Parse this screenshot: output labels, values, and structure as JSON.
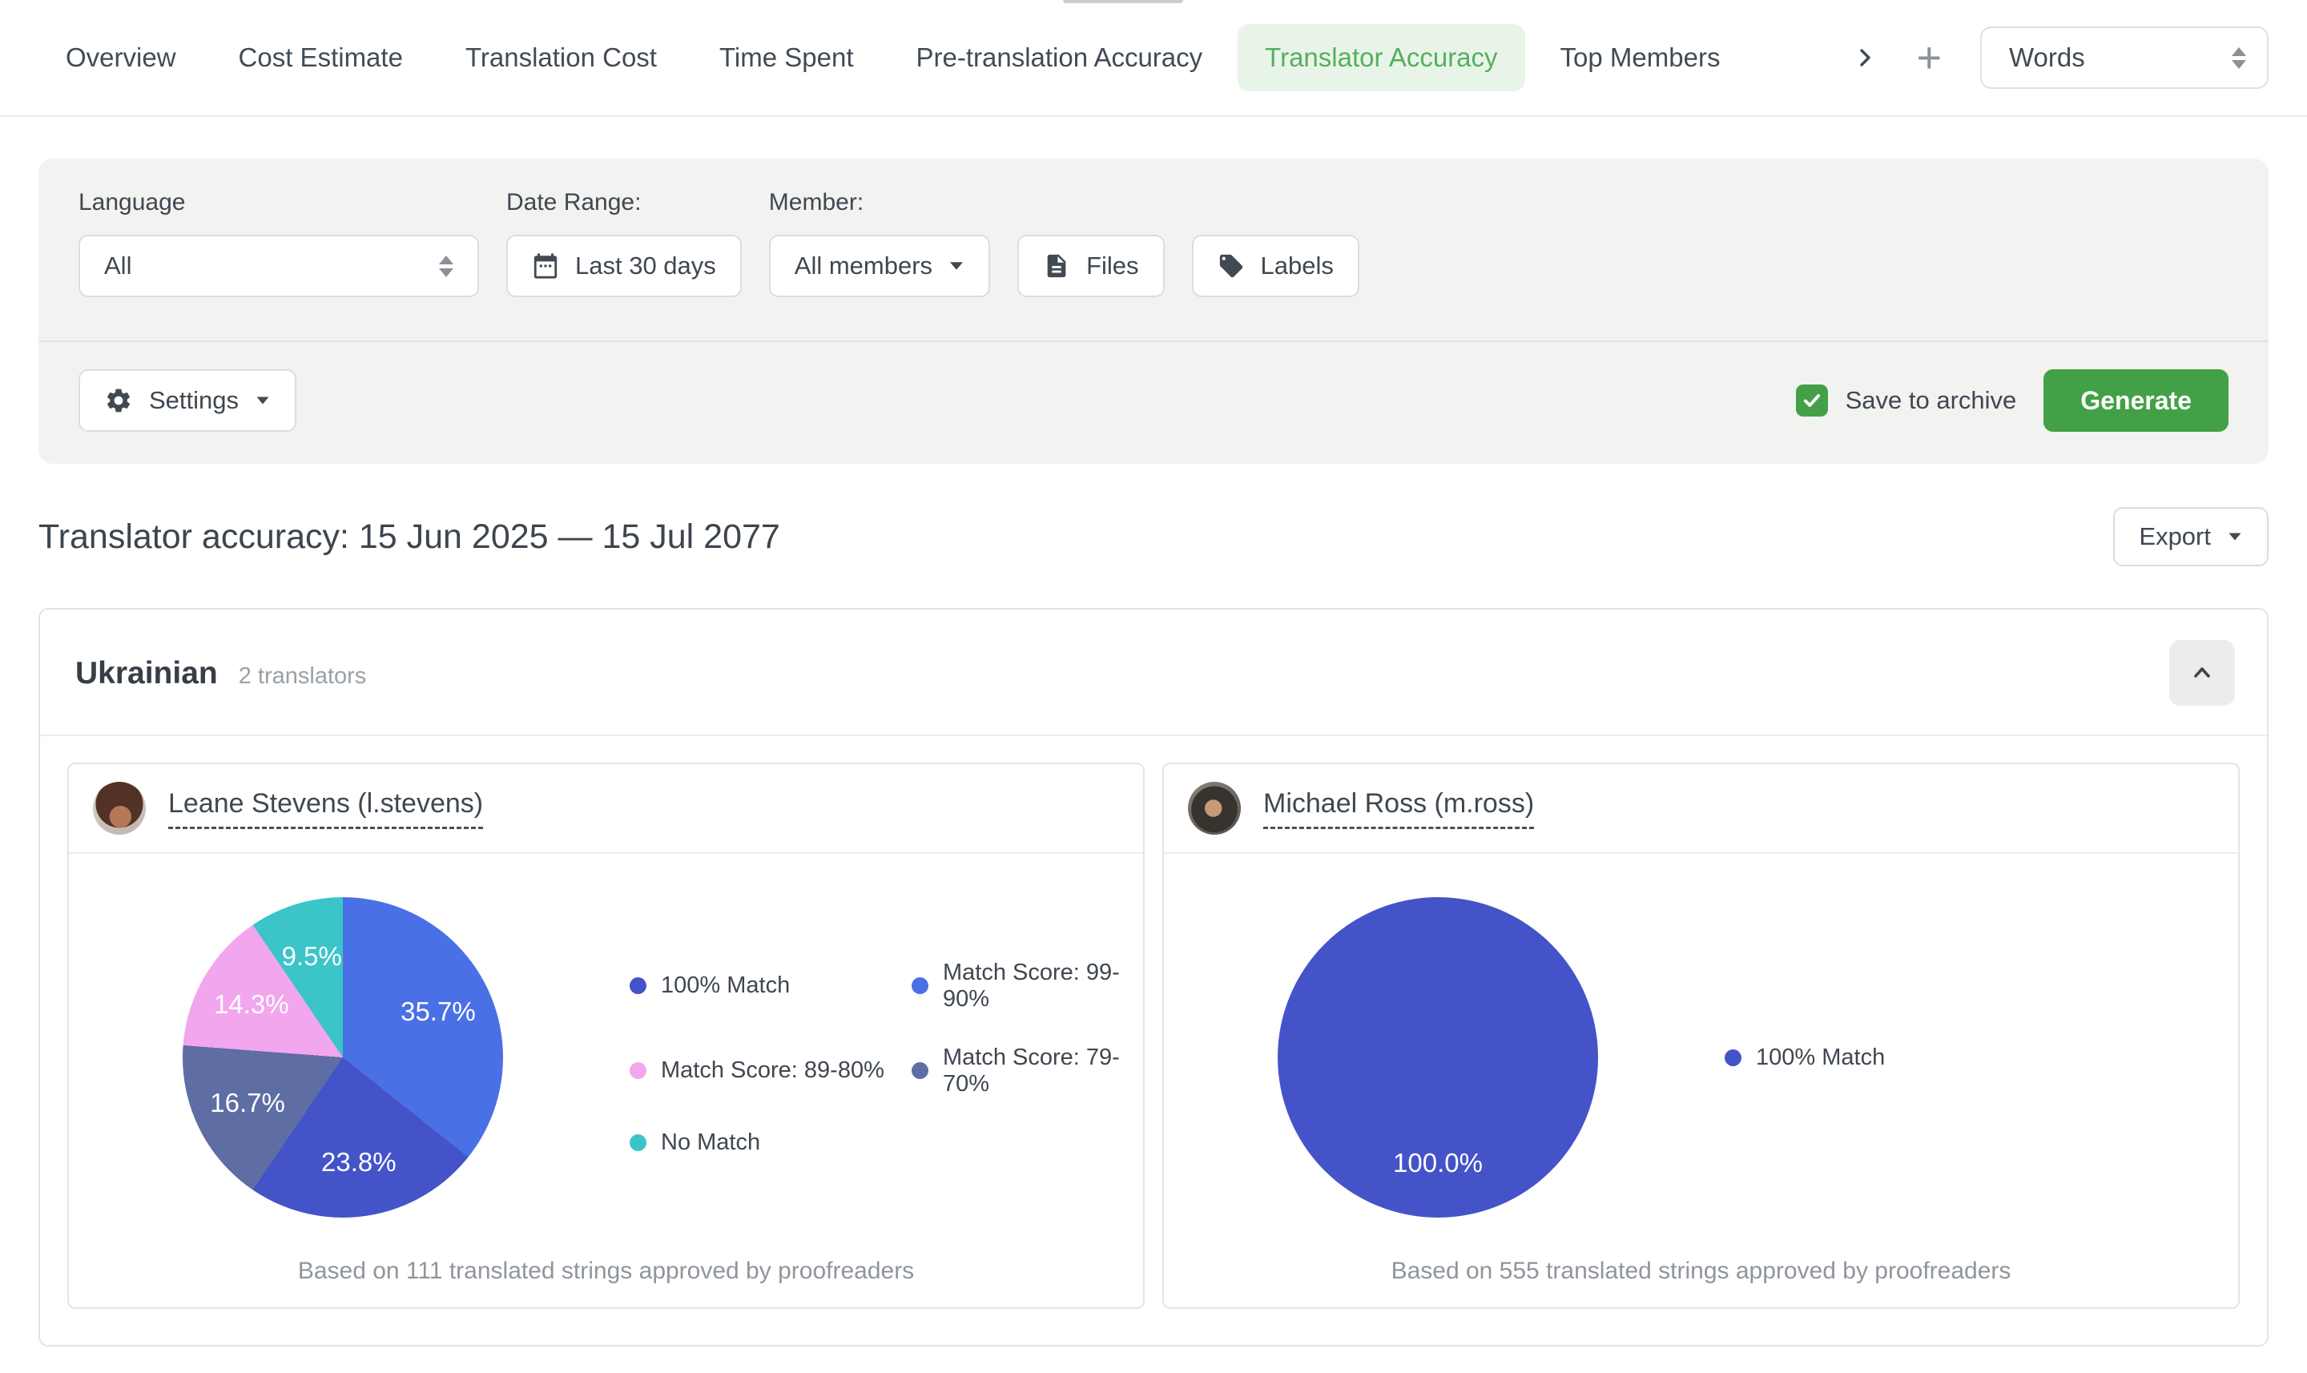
{
  "tabs": {
    "items": [
      {
        "label": "Overview",
        "active": false
      },
      {
        "label": "Cost Estimate",
        "active": false
      },
      {
        "label": "Translation Cost",
        "active": false
      },
      {
        "label": "Time Spent",
        "active": false
      },
      {
        "label": "Pre-translation Accuracy",
        "active": false
      },
      {
        "label": "Translator Accuracy",
        "active": true
      },
      {
        "label": "Top Members",
        "active": false
      }
    ],
    "unit_select": {
      "value": "Words"
    }
  },
  "filters": {
    "language_label": "Language",
    "language_value": "All",
    "date_range_label": "Date Range:",
    "date_range_value": "Last 30 days",
    "member_label": "Member:",
    "member_value": "All members",
    "files_label": "Files",
    "labels_label": "Labels",
    "settings_label": "Settings",
    "save_to_archive_label": "Save to archive",
    "save_to_archive_checked": true,
    "generate_label": "Generate"
  },
  "report": {
    "title": "Translator accuracy: 15 Jun 2025 — 15 Jul 2077",
    "export_label": "Export"
  },
  "language_section": {
    "name": "Ukrainian",
    "translators_count": "2 translators"
  },
  "colors": {
    "accent_green": "#43a047",
    "active_tab_text": "#54b05e",
    "active_tab_bg": "#e9f4e9",
    "panel_bg": "#f2f2f1"
  },
  "icons": {
    "tab_scroll": "chevron-right-icon",
    "add_report": "plus-icon",
    "date_range": "calendar-icon",
    "files": "file-icon",
    "labels": "tag-icon",
    "settings": "gear-icon",
    "collapse": "chevron-up-icon"
  },
  "chart_data": [
    {
      "type": "pie",
      "translator": "Leane Stevens (l.stevens)",
      "footnote": "Based on 111 translated strings approved by proofreaders",
      "slices": [
        {
          "label": "Match Score: 99-90%",
          "value": 35.7,
          "color": "#4a70e6"
        },
        {
          "label": "100% Match",
          "value": 23.8,
          "color": "#4453c8"
        },
        {
          "label": "Match Score: 79-70%",
          "value": 16.7,
          "color": "#5e6da4"
        },
        {
          "label": "Match Score: 89-80%",
          "value": 14.3,
          "color": "#f2a6ee"
        },
        {
          "label": "No Match",
          "value": 9.5,
          "color": "#3bc5c9"
        }
      ],
      "legend": [
        {
          "label": "100% Match",
          "color": "#4453c8"
        },
        {
          "label": "Match Score: 99-90%",
          "color": "#4a70e6"
        },
        {
          "label": "Match Score: 89-80%",
          "color": "#f2a6ee"
        },
        {
          "label": "Match Score: 79-70%",
          "color": "#5e6da4"
        },
        {
          "label": "No Match",
          "color": "#3bc5c9"
        }
      ]
    },
    {
      "type": "pie",
      "translator": "Michael Ross (m.ross)",
      "footnote": "Based on 555 translated strings approved by proofreaders",
      "slices": [
        {
          "label": "100% Match",
          "value": 100.0,
          "color": "#4453c8"
        }
      ],
      "legend": [
        {
          "label": "100% Match",
          "color": "#4453c8"
        }
      ]
    }
  ]
}
